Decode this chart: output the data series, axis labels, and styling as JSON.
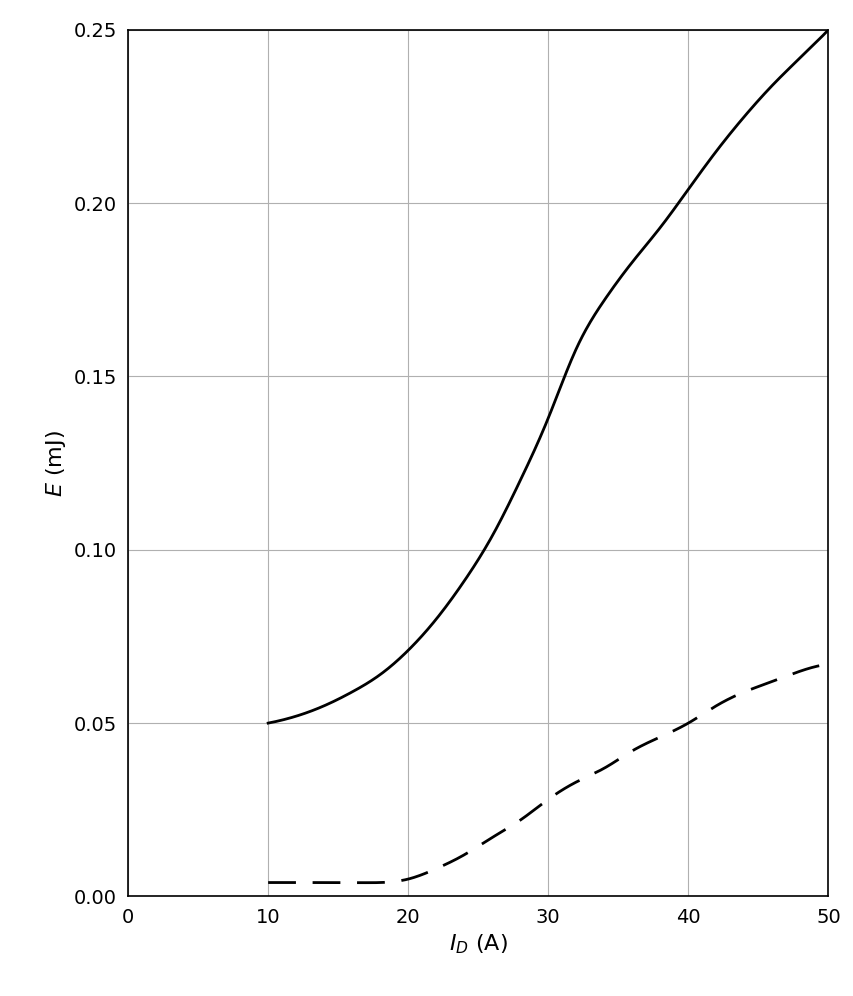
{
  "title": "",
  "xlabel": "$I_D$ (A)",
  "ylabel": "$E$ (mJ)",
  "xlim": [
    0,
    50
  ],
  "ylim": [
    0,
    0.25
  ],
  "xticks": [
    0,
    10,
    20,
    30,
    40,
    50
  ],
  "yticks": [
    0.0,
    0.05,
    0.1,
    0.15,
    0.2,
    0.25
  ],
  "solid_x": [
    10,
    12,
    14,
    16,
    18,
    20,
    22,
    24,
    26,
    28,
    30,
    32,
    34,
    36,
    38,
    40,
    42,
    44,
    46,
    48,
    50
  ],
  "solid_y": [
    0.05,
    0.052,
    0.055,
    0.059,
    0.064,
    0.071,
    0.08,
    0.091,
    0.104,
    0.12,
    0.138,
    0.158,
    0.172,
    0.183,
    0.193,
    0.204,
    0.215,
    0.225,
    0.234,
    0.242,
    0.25
  ],
  "dashed_x": [
    10,
    12,
    14,
    16,
    18,
    20,
    22,
    24,
    26,
    28,
    30,
    32,
    34,
    36,
    38,
    40,
    42,
    44,
    46,
    48,
    50
  ],
  "dashed_y": [
    0.004,
    0.004,
    0.004,
    0.004,
    0.004,
    0.005,
    0.008,
    0.012,
    0.017,
    0.022,
    0.028,
    0.033,
    0.037,
    0.042,
    0.046,
    0.05,
    0.055,
    0.059,
    0.062,
    0.065,
    0.067
  ],
  "line_color": "#000000",
  "line_width": 2.0,
  "grid_color": "#b0b0b0",
  "background_color": "#ffffff",
  "xlabel_fontsize": 16,
  "ylabel_fontsize": 16,
  "tick_fontsize": 14,
  "figsize": [
    8.54,
    9.96
  ],
  "dpi": 100
}
